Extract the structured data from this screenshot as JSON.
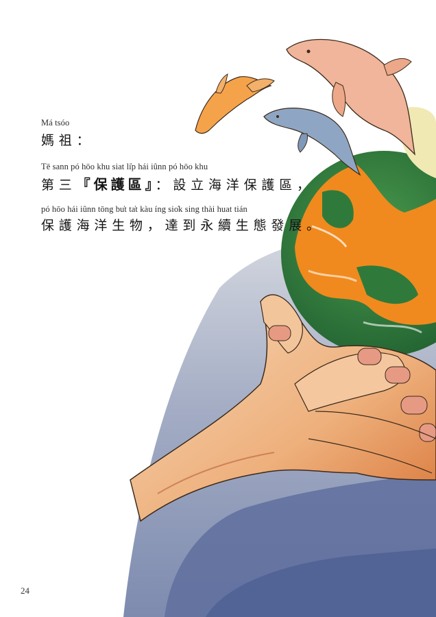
{
  "speaker": {
    "romanization": "Má tsóo",
    "chinese": "媽祖："
  },
  "line1": {
    "romanization": "Tē sann     pó hōo khu              siat li̍p hái iûnn pó hōo khu",
    "prefix": "第三",
    "emphasis": "『保護區』",
    "suffix": "：設立海洋保護區，"
  },
  "line2": {
    "romanization": "pó hōo hái iûnn tōng bu̍t   ta̍t kàu íng sio̍k sing thài huat tián",
    "chinese": "保護海洋生物，達到永續生態發展。"
  },
  "page_number": "24",
  "colors": {
    "ocean": "#2f7a3a",
    "land": "#f08a1e",
    "hand": "#f2b98a",
    "background_shadow": "#7f8fb3",
    "dolphin_pink": "#f0b59a",
    "dolphin_orange": "#f5a34a",
    "dolphin_blue": "#8ea6c4"
  },
  "illustration": {
    "subjects": [
      "hand-holding-globe",
      "dolphin-pink",
      "dolphin-orange",
      "dolphin-blue"
    ]
  }
}
